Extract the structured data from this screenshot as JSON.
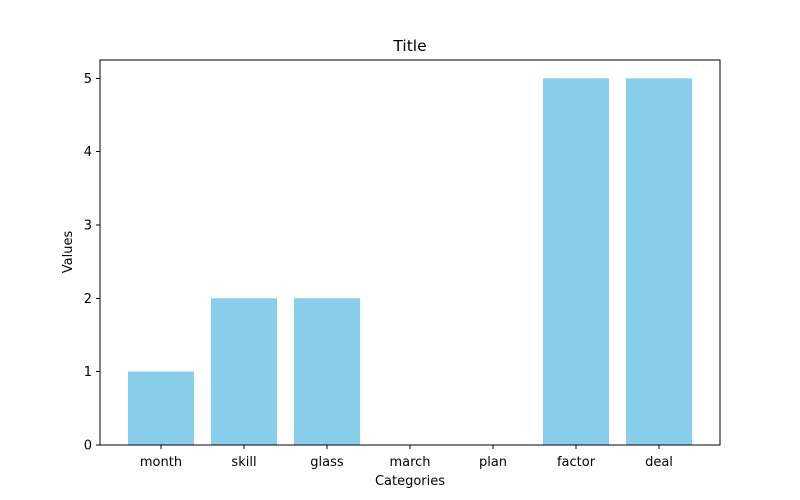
{
  "chart_data": {
    "type": "bar",
    "title": "Title",
    "xlabel": "Categories",
    "ylabel": "Values",
    "categories": [
      "month",
      "skill",
      "glass",
      "march",
      "plan",
      "factor",
      "deal"
    ],
    "values": [
      1,
      2,
      2,
      0,
      0,
      5,
      5
    ],
    "ylim": [
      0,
      5.25
    ],
    "yticks": [
      "0",
      "1",
      "2",
      "3",
      "4",
      "5"
    ],
    "bar_color": "#87ceeb",
    "grid": false,
    "legend": "none"
  }
}
